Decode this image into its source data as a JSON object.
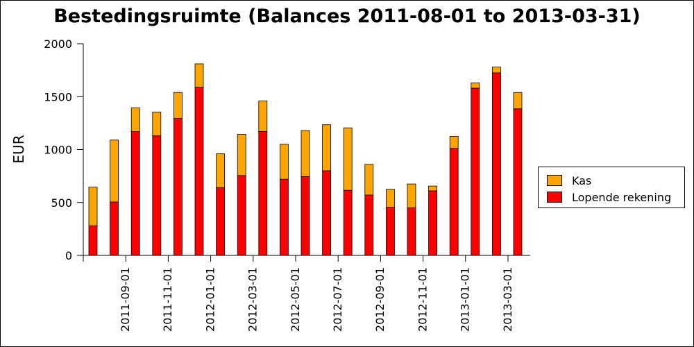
{
  "chart_data": {
    "type": "bar",
    "stacked": true,
    "title": "Bestedingsruimte (Balances 2011-08-01 to 2013-03-31)",
    "ylabel": "EUR",
    "xlabel": "",
    "ylim": [
      0,
      2000
    ],
    "yticks": [
      0,
      500,
      1000,
      1500,
      2000
    ],
    "grid": false,
    "legend_position": "right",
    "categories": [
      "2011-08-01",
      "2011-09-01",
      "2011-10-01",
      "2011-11-01",
      "2011-12-01",
      "2012-01-01",
      "2012-02-01",
      "2012-03-01",
      "2012-04-01",
      "2012-05-01",
      "2012-06-01",
      "2012-07-01",
      "2012-08-01",
      "2012-09-01",
      "2012-10-01",
      "2012-11-01",
      "2012-12-01",
      "2013-01-01",
      "2013-02-01",
      "2013-03-01",
      "2013-03-31"
    ],
    "xtick_labels": [
      "2011-09-01",
      "2011-11-01",
      "2012-01-01",
      "2012-03-01",
      "2012-05-01",
      "2012-07-01",
      "2012-09-01",
      "2012-11-01",
      "2013-01-01",
      "2013-03-01"
    ],
    "series": [
      {
        "name": "Lopende rekening",
        "color": "#ff0000",
        "values": [
          280,
          505,
          1170,
          1130,
          1295,
          1590,
          640,
          755,
          1170,
          720,
          745,
          800,
          615,
          570,
          455,
          450,
          610,
          1010,
          1580,
          1725,
          1385
        ]
      },
      {
        "name": "Kas",
        "color": "#ffa500",
        "values": [
          365,
          585,
          225,
          225,
          245,
          220,
          320,
          390,
          290,
          330,
          435,
          435,
          590,
          290,
          170,
          225,
          45,
          115,
          50,
          55,
          155
        ]
      }
    ]
  },
  "legend": {
    "items": [
      {
        "label": "Kas",
        "color": "#ffa500"
      },
      {
        "label": "Lopende rekening",
        "color": "#ff0000"
      }
    ]
  }
}
